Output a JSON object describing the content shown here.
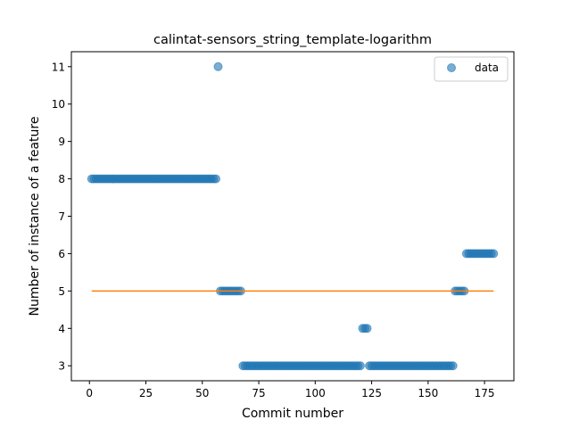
{
  "chart_data": {
    "type": "scatter",
    "title": "calintat-sensors_string_template-logarithm",
    "xlabel": "Commit number",
    "ylabel": "Number of instance of a feature",
    "xlim": [
      -8,
      188
    ],
    "ylim": [
      2.6,
      11.4
    ],
    "xticks": [
      0,
      25,
      50,
      75,
      100,
      125,
      150,
      175
    ],
    "yticks": [
      3,
      4,
      5,
      6,
      7,
      8,
      9,
      10,
      11
    ],
    "grid": false,
    "legend_position": "top-right",
    "colors": {
      "points": "#1f77b4",
      "line": "#ff7f0e"
    },
    "series": [
      {
        "name": "data",
        "kind": "scatter",
        "segments": [
          {
            "x_start": 1,
            "x_end": 56,
            "y": 8
          },
          {
            "x_start": 57,
            "x_end": 57,
            "y": 11
          },
          {
            "x_start": 58,
            "x_end": 67,
            "y": 5
          },
          {
            "x_start": 68,
            "x_end": 120,
            "y": 3
          },
          {
            "x_start": 121,
            "x_end": 123,
            "y": 4
          },
          {
            "x_start": 124,
            "x_end": 161,
            "y": 3
          },
          {
            "x_start": 162,
            "x_end": 166,
            "y": 5
          },
          {
            "x_start": 167,
            "x_end": 179,
            "y": 6
          }
        ]
      },
      {
        "kind": "line",
        "x": [
          1,
          179
        ],
        "y": [
          5,
          5
        ]
      }
    ]
  }
}
